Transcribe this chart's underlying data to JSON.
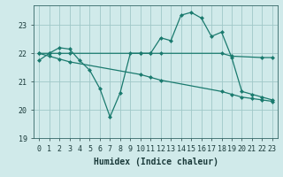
{
  "background_color": "#d0eaea",
  "grid_color": "#a0c8c8",
  "line_color": "#1a7a6e",
  "xlabel": "Humidex (Indice chaleur)",
  "xlim": [
    -0.5,
    23.5
  ],
  "ylim": [
    19.0,
    23.7
  ],
  "yticks": [
    19,
    20,
    21,
    22,
    23
  ],
  "xticks": [
    0,
    1,
    2,
    3,
    4,
    5,
    6,
    7,
    8,
    9,
    10,
    11,
    12,
    13,
    14,
    15,
    16,
    17,
    18,
    19,
    20,
    21,
    22,
    23
  ],
  "line1_x": [
    0,
    1,
    2,
    3,
    4,
    5,
    6,
    7,
    8,
    9,
    10,
    11,
    12,
    13,
    14,
    15,
    16,
    17,
    18,
    19,
    20,
    21,
    22,
    23
  ],
  "line1_y": [
    21.75,
    22.0,
    22.2,
    22.15,
    21.75,
    21.4,
    20.75,
    19.75,
    20.6,
    22.0,
    22.0,
    22.0,
    22.55,
    22.45,
    23.35,
    23.45,
    23.25,
    22.6,
    22.75,
    21.85,
    20.65,
    20.55,
    20.45,
    20.35
  ],
  "line2_x": [
    0,
    1,
    2,
    3,
    10,
    11,
    12,
    18,
    19,
    22,
    23
  ],
  "line2_y": [
    22.0,
    22.0,
    22.0,
    22.0,
    22.0,
    22.0,
    22.0,
    22.0,
    21.9,
    21.85,
    21.85
  ],
  "line3_x": [
    0,
    1,
    2,
    3,
    10,
    11,
    12,
    18,
    19,
    20,
    21,
    22,
    23
  ],
  "line3_y": [
    22.0,
    21.9,
    21.8,
    21.7,
    21.25,
    21.15,
    21.05,
    20.65,
    20.55,
    20.45,
    20.4,
    20.35,
    20.3
  ],
  "marker_size": 2.5,
  "linewidth": 0.9,
  "tick_fontsize": 6,
  "label_fontsize": 7
}
